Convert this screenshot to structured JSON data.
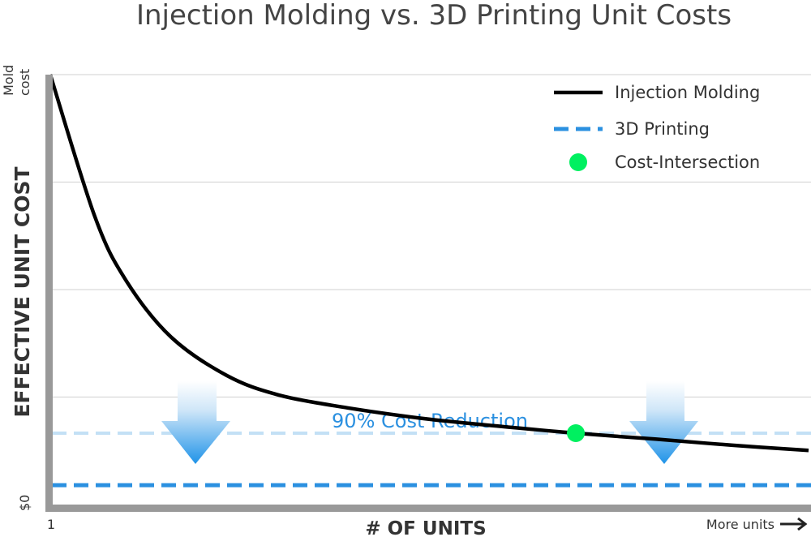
{
  "chart_data": {
    "type": "line",
    "title": "Injection Molding vs. 3D Printing Unit Costs",
    "xlabel": "# OF UNITS",
    "ylabel": "EFFECTIVE UNIT COST",
    "x_start_label": "1",
    "x_end_label": "More units",
    "y_top_label_line1": "Mold",
    "y_top_label_line2": "cost",
    "y_bottom_label": "$0",
    "xlim": [
      1,
      1000
    ],
    "ylim": [
      0,
      10
    ],
    "grid": true,
    "legend_position": "top-right",
    "series": [
      {
        "name": "Injection Molding",
        "style": "solid",
        "color": "#000000",
        "description": "cost per unit decreases as units increase",
        "x": [
          1,
          1.5,
          2,
          3,
          5,
          8,
          15,
          30,
          60,
          120,
          250,
          500,
          1000
        ],
        "y": [
          10.0,
          6.7,
          5.2,
          3.9,
          3.0,
          2.55,
          2.25,
          2.0,
          1.82,
          1.66,
          1.52,
          1.38,
          1.26
        ]
      },
      {
        "name": "3D Printing",
        "style": "dashed",
        "color": "#2b90e0",
        "y_constant": 0.45
      }
    ],
    "reference_line": {
      "style": "dashed",
      "color": "#c3e0f5",
      "y_constant": 1.66
    },
    "intersection": {
      "name": "Cost-Intersection",
      "color": "#00f060",
      "x": 120,
      "y": 1.66
    },
    "annotation": {
      "text": "90% Cost Reduction",
      "color": "#2b90e0"
    }
  }
}
